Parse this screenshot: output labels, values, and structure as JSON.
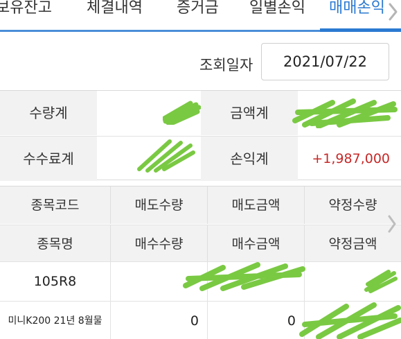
{
  "tabs": [
    {
      "label": "보유잔고",
      "active": false
    },
    {
      "label": "체결내역",
      "active": false
    },
    {
      "label": "증거금",
      "active": false
    },
    {
      "label": "일별손익",
      "active": false
    },
    {
      "label": "매매손익",
      "active": true
    }
  ],
  "query": {
    "label": "조회일자",
    "date": "2021/07/22"
  },
  "summary": {
    "qty_total_label": "수량계",
    "amount_total_label": "금액계",
    "fee_total_label": "수수료계",
    "pnl_total_label": "손익계",
    "pnl_total_value": "+1,987,000"
  },
  "detail": {
    "headers_row1": [
      "종목코드",
      "매도수량",
      "매도금액",
      "약정수량"
    ],
    "headers_row2": [
      "종목명",
      "매수수량",
      "매수금액",
      "약정금액"
    ],
    "rows": [
      {
        "cells": [
          "105R8",
          "",
          "",
          ""
        ]
      },
      {
        "cells": [
          "미니K200 21년 8월물",
          "0",
          "0",
          ""
        ]
      }
    ]
  },
  "colors": {
    "accent": "#2a7ad1",
    "profit": "#c62828",
    "redaction": "#7ac943"
  },
  "icons": {
    "tab_next": "chevron-right-icon",
    "table_next": "chevron-right-icon"
  }
}
